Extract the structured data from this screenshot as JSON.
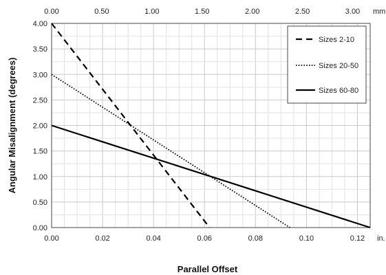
{
  "chart_data": {
    "type": "line",
    "ylabel": "Angular Misalignment (degrees)",
    "xlabel": "Parallel Offset",
    "x_bottom": {
      "unit": "in.",
      "lim": [
        0,
        0.125
      ],
      "ticks": [
        "0.00",
        "0.02",
        "0.04",
        "0.06",
        "0.08",
        "0.10",
        "0.12"
      ],
      "tick_values": [
        0,
        0.02,
        0.04,
        0.06,
        0.08,
        0.1,
        0.12
      ]
    },
    "x_top": {
      "unit": "mm",
      "lim": [
        0,
        3.175
      ],
      "ticks": [
        "0.00",
        "0.50",
        "1.00",
        "1.50",
        "2.00",
        "2.50",
        "3.00"
      ],
      "tick_values": [
        0,
        0.5,
        1.0,
        1.5,
        2.0,
        2.5,
        3.0
      ]
    },
    "y": {
      "lim": [
        0,
        4
      ],
      "ticks": [
        "0.00",
        "0.50",
        "1.00",
        "1.50",
        "2.00",
        "2.50",
        "3.00",
        "3.50",
        "4.00"
      ],
      "tick_values": [
        0,
        0.5,
        1.0,
        1.5,
        2.0,
        2.5,
        3.0,
        3.5,
        4.0
      ]
    },
    "grid": true,
    "legend_position": "top-right",
    "series": [
      {
        "name": "Sizes 2-10",
        "style": "dashed",
        "x": [
          0,
          0.062
        ],
        "y": [
          4.0,
          0.0
        ]
      },
      {
        "name": "Sizes 20-50",
        "style": "dotted",
        "x": [
          0,
          0.0935
        ],
        "y": [
          3.0,
          0.0
        ]
      },
      {
        "name": "Sizes 60-80",
        "style": "solid",
        "x": [
          0,
          0.125
        ],
        "y": [
          2.0,
          0.0
        ]
      }
    ]
  }
}
